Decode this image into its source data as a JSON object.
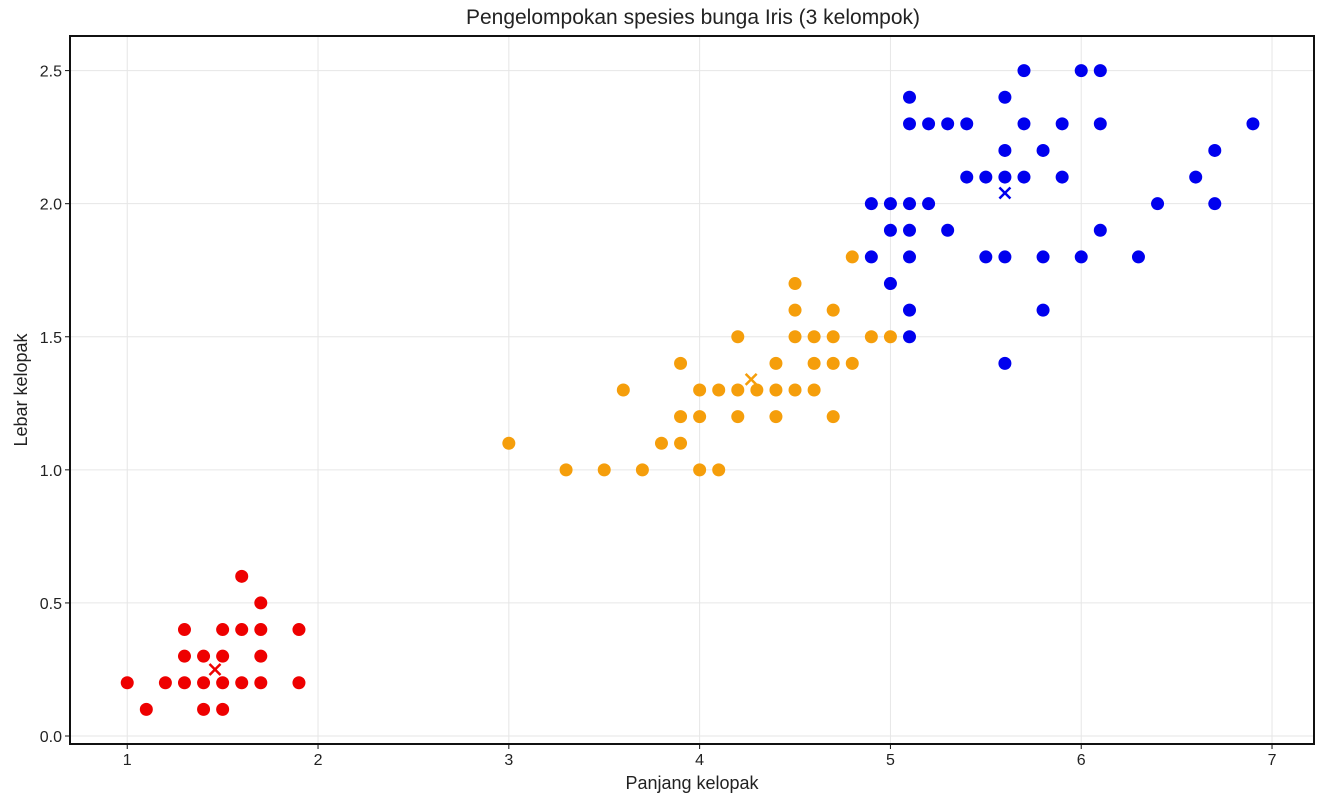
{
  "chart_data": {
    "type": "scatter",
    "title": "Pengelompokan spesies bunga Iris (3 kelompok)",
    "xlabel": "Panjang kelopak",
    "ylabel": "Lebar kelopak",
    "xlim": [
      0.7,
      7.22
    ],
    "ylim": [
      -0.03,
      2.63
    ],
    "xticks": [
      1,
      2,
      3,
      4,
      5,
      6,
      7
    ],
    "xtick_labels": [
      "1",
      "2",
      "3",
      "4",
      "5",
      "6",
      "7"
    ],
    "yticks": [
      0.0,
      0.5,
      1.0,
      1.5,
      2.0,
      2.5
    ],
    "ytick_labels": [
      "0.0",
      "0.5",
      "1.0",
      "1.5",
      "2.0",
      "2.5"
    ],
    "grid": true,
    "legend": "none",
    "series": [
      {
        "color": "#ee0000",
        "points": [
          [
            1.0,
            0.2
          ],
          [
            1.1,
            0.1
          ],
          [
            1.2,
            0.2
          ],
          [
            1.3,
            0.4
          ],
          [
            1.3,
            0.3
          ],
          [
            1.3,
            0.2
          ],
          [
            1.4,
            0.3
          ],
          [
            1.4,
            0.2
          ],
          [
            1.4,
            0.1
          ],
          [
            1.5,
            0.4
          ],
          [
            1.5,
            0.3
          ],
          [
            1.5,
            0.2
          ],
          [
            1.5,
            0.1
          ],
          [
            1.6,
            0.6
          ],
          [
            1.6,
            0.4
          ],
          [
            1.6,
            0.2
          ],
          [
            1.7,
            0.5
          ],
          [
            1.7,
            0.4
          ],
          [
            1.7,
            0.3
          ],
          [
            1.7,
            0.2
          ],
          [
            1.9,
            0.4
          ],
          [
            1.9,
            0.2
          ]
        ],
        "centroid": [
          1.46,
          0.25
        ]
      },
      {
        "color": "#f59e0b",
        "points": [
          [
            3.0,
            1.1
          ],
          [
            3.3,
            1.0
          ],
          [
            3.5,
            1.0
          ],
          [
            3.6,
            1.3
          ],
          [
            3.7,
            1.0
          ],
          [
            3.8,
            1.1
          ],
          [
            3.9,
            1.4
          ],
          [
            3.9,
            1.2
          ],
          [
            3.9,
            1.1
          ],
          [
            4.0,
            1.3
          ],
          [
            4.0,
            1.2
          ],
          [
            4.0,
            1.0
          ],
          [
            4.1,
            1.3
          ],
          [
            4.1,
            1.0
          ],
          [
            4.2,
            1.5
          ],
          [
            4.2,
            1.3
          ],
          [
            4.2,
            1.2
          ],
          [
            4.3,
            1.3
          ],
          [
            4.4,
            1.4
          ],
          [
            4.4,
            1.3
          ],
          [
            4.4,
            1.2
          ],
          [
            4.5,
            1.7
          ],
          [
            4.5,
            1.6
          ],
          [
            4.5,
            1.5
          ],
          [
            4.5,
            1.3
          ],
          [
            4.6,
            1.5
          ],
          [
            4.6,
            1.4
          ],
          [
            4.6,
            1.3
          ],
          [
            4.7,
            1.6
          ],
          [
            4.7,
            1.5
          ],
          [
            4.7,
            1.4
          ],
          [
            4.7,
            1.2
          ],
          [
            4.8,
            1.8
          ],
          [
            4.8,
            1.4
          ],
          [
            4.9,
            1.5
          ],
          [
            5.0,
            1.5
          ]
        ],
        "centroid": [
          4.27,
          1.34
        ]
      },
      {
        "color": "#0000ee",
        "points": [
          [
            4.9,
            2.0
          ],
          [
            4.9,
            1.8
          ],
          [
            5.0,
            2.0
          ],
          [
            5.0,
            1.9
          ],
          [
            5.0,
            1.7
          ],
          [
            5.1,
            2.4
          ],
          [
            5.1,
            2.3
          ],
          [
            5.1,
            2.0
          ],
          [
            5.1,
            1.9
          ],
          [
            5.1,
            1.8
          ],
          [
            5.1,
            1.6
          ],
          [
            5.1,
            1.5
          ],
          [
            5.2,
            2.3
          ],
          [
            5.2,
            2.0
          ],
          [
            5.3,
            2.3
          ],
          [
            5.3,
            1.9
          ],
          [
            5.4,
            2.3
          ],
          [
            5.4,
            2.1
          ],
          [
            5.5,
            2.1
          ],
          [
            5.5,
            1.8
          ],
          [
            5.6,
            2.4
          ],
          [
            5.6,
            2.2
          ],
          [
            5.6,
            2.1
          ],
          [
            5.6,
            1.8
          ],
          [
            5.6,
            1.4
          ],
          [
            5.7,
            2.5
          ],
          [
            5.7,
            2.3
          ],
          [
            5.7,
            2.1
          ],
          [
            5.8,
            2.2
          ],
          [
            5.8,
            1.8
          ],
          [
            5.8,
            1.6
          ],
          [
            5.9,
            2.3
          ],
          [
            5.9,
            2.1
          ],
          [
            6.0,
            2.5
          ],
          [
            6.0,
            1.8
          ],
          [
            6.1,
            2.5
          ],
          [
            6.1,
            2.3
          ],
          [
            6.1,
            1.9
          ],
          [
            6.3,
            1.8
          ],
          [
            6.4,
            2.0
          ],
          [
            6.6,
            2.1
          ],
          [
            6.7,
            2.2
          ],
          [
            6.7,
            2.0
          ],
          [
            6.9,
            2.3
          ]
        ],
        "centroid": [
          5.6,
          2.04
        ]
      }
    ]
  }
}
